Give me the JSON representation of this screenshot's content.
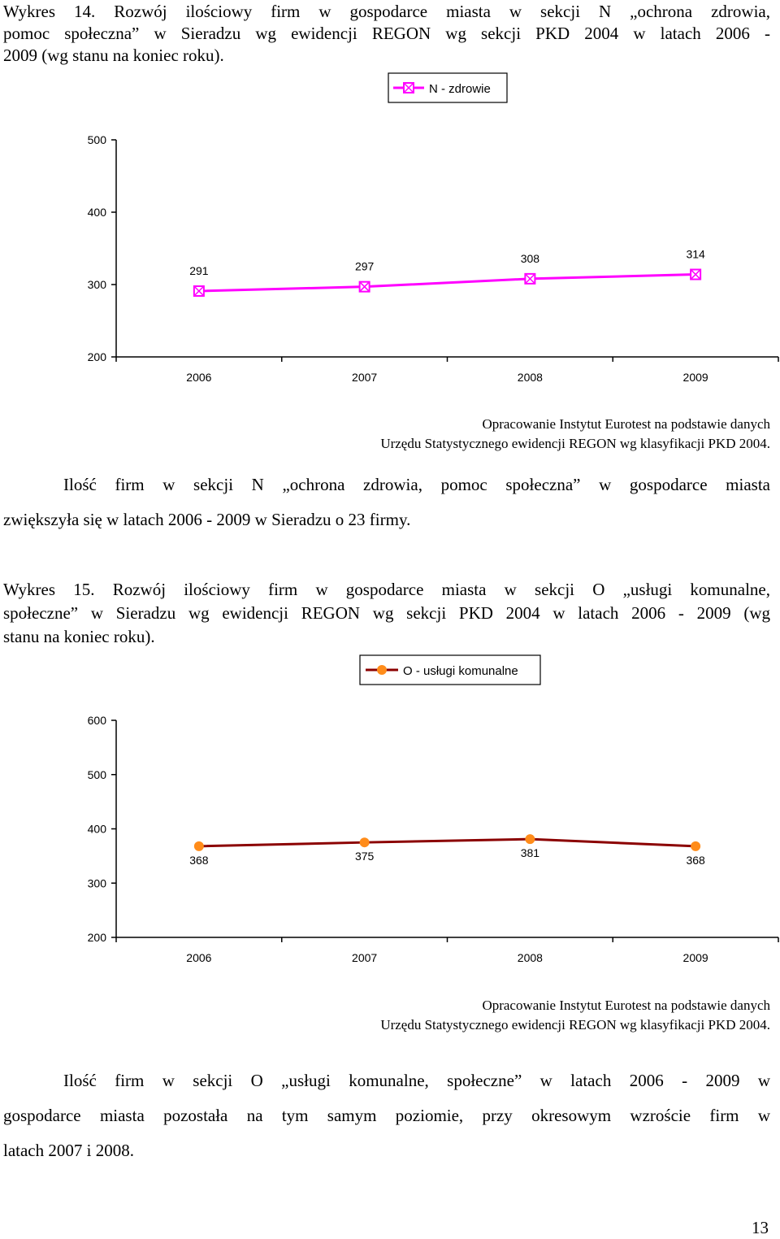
{
  "figure14": {
    "caption_l1": "Wykres 14. Rozwój ilościowy firm w gospodarce miasta w sekcji N „ochrona zdrowia,",
    "caption_l2": "pomoc społeczna” w Sieradzu wg ewidencji REGON wg sekcji PKD 2004 w latach 2006 -",
    "caption_l3": "2009 (wg stanu na koniec roku).",
    "source_l1": "Opracowanie Instytut Eurotest na podstawie danych",
    "source_l2": "Urzędu Statystycznego  ewidencji REGON wg klasyfikacji PKD 2004.",
    "para_l1": "Ilość firm w sekcji N „ochrona zdrowia, pomoc społeczna” w gospodarce miasta",
    "para_l2": "zwiększyła się w latach 2006 - 2009 w Sieradzu o 23 firmy."
  },
  "figure15": {
    "caption_l1": "Wykres 15. Rozwój ilościowy firm w gospodarce miasta w sekcji O „usługi komunalne,",
    "caption_l2": "społeczne” w Sieradzu wg ewidencji REGON wg sekcji PKD 2004 w latach 2006 - 2009 (wg",
    "caption_l3": "stanu na koniec roku).",
    "source_l1": "Opracowanie Instytut Eurotest na podstawie danych",
    "source_l2": "Urzędu Statystycznego  ewidencji REGON wg klasyfikacji PKD 2004.",
    "para_l1": "Ilość firm w sekcji O „usługi komunalne, społeczne” w latach 2006 - 2009 w",
    "para_l2": "gospodarce miasta pozostała na tym samym poziomie, przy okresowym wzroście firm w",
    "para_l3": "latach 2007 i 2008."
  },
  "page_number": "13",
  "chart_data": [
    {
      "type": "line",
      "categories": [
        "2006",
        "2007",
        "2008",
        "2009"
      ],
      "series": [
        {
          "name": "N - zdrowie",
          "values": [
            291,
            297,
            308,
            314
          ],
          "color": "#ff00ff",
          "marker": "square-x"
        }
      ],
      "yticks": [
        200,
        300,
        400,
        500
      ],
      "ylim": [
        200,
        500
      ],
      "legend": "top-center",
      "grid": false
    },
    {
      "type": "line",
      "categories": [
        "2006",
        "2007",
        "2008",
        "2009"
      ],
      "series": [
        {
          "name": "O - usługi komunalne",
          "values": [
            368,
            375,
            381,
            368
          ],
          "color": "#8b0000",
          "marker_color": "#ff8c1a",
          "marker": "circle"
        }
      ],
      "yticks": [
        200,
        300,
        400,
        500,
        600
      ],
      "ylim": [
        200,
        600
      ],
      "legend": "top-center",
      "grid": false
    }
  ]
}
